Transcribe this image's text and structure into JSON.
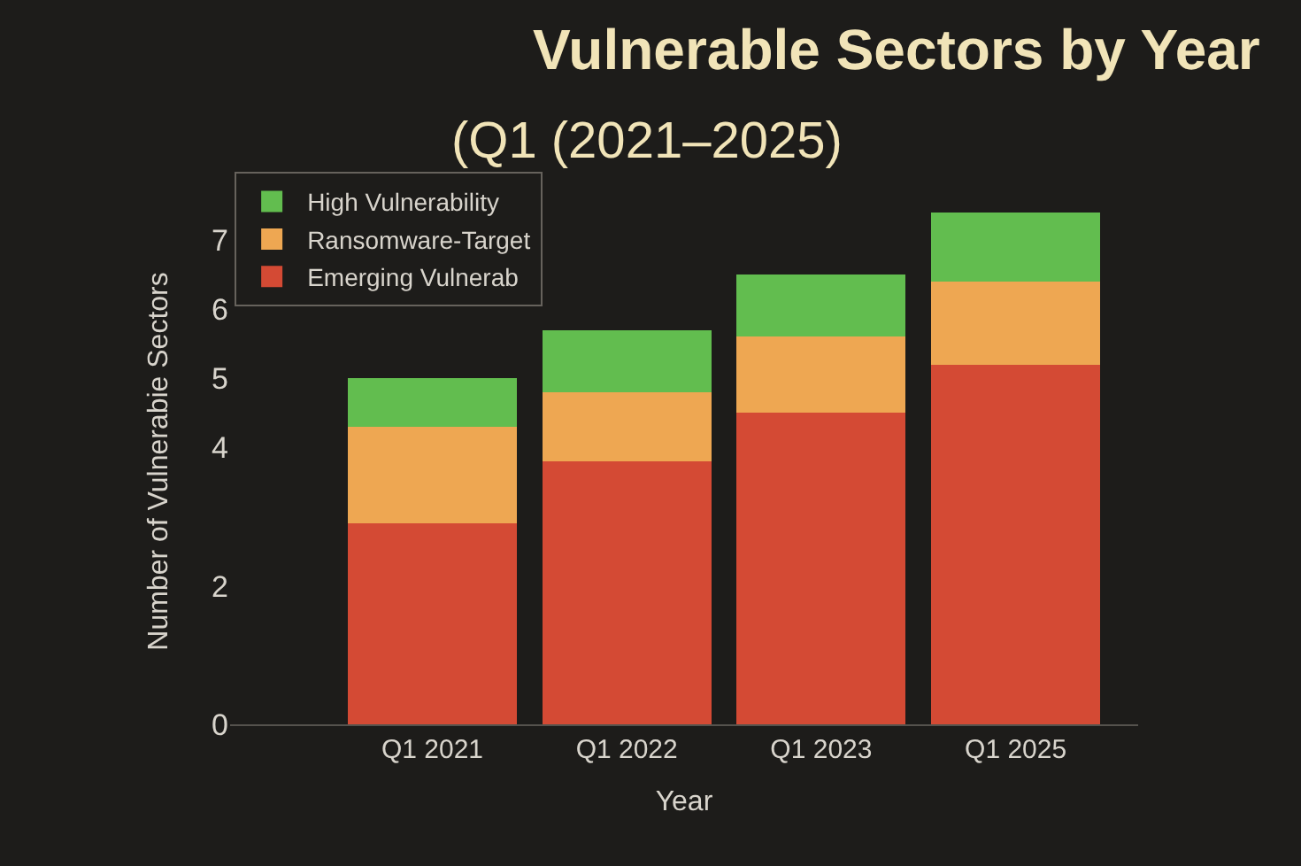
{
  "chart_data": {
    "type": "bar",
    "stacked": true,
    "title": "Vulnerable Sectors by Year",
    "subtitle": "(Q1 (2021–2025)",
    "xlabel": "Year",
    "ylabel": "Number of Vulnerabie Sectors",
    "categories": [
      "Q1 2021",
      "Q1 2022",
      "Q1 2023",
      "Q1 2025"
    ],
    "series": [
      {
        "name": "Emerging Vulnerab",
        "color": "#d44a34",
        "values": [
          2.9,
          3.8,
          4.5,
          5.2
        ]
      },
      {
        "name": "Ransomware-Target",
        "color": "#eea752",
        "values": [
          1.4,
          1.0,
          1.1,
          1.2
        ]
      },
      {
        "name": "High Vulnerability",
        "color": "#62bd4f",
        "values": [
          0.7,
          0.9,
          0.9,
          1.0
        ]
      }
    ],
    "ylim": [
      0,
      7.6
    ],
    "yticks": [
      0,
      2,
      4,
      5,
      6,
      7
    ],
    "grid": false,
    "legend": "top left"
  }
}
